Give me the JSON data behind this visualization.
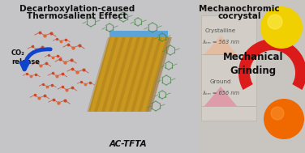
{
  "bg_color": "#c8c8cc",
  "title_left_1": "Decarboxylation-caused",
  "title_left_2": "Thermosalient Effect",
  "title_right_1": "Mechanochromic",
  "title_right_2": "cocrystal",
  "label_actfta": "AC-TFTA",
  "label_crystalline": "Crystalline",
  "lambda_crystalline": "λₑₘ = 563 nm",
  "label_ground": "Ground",
  "lambda_ground": "λₑₘ = 656 nm",
  "label_mechanical": "Mechanical\nGrinding",
  "label_co2": "CO₂\nrelease",
  "crystal_color_light": "#e8c840",
  "crystal_color_dark": "#a07818",
  "crystal_edge_color": "#4a9edd",
  "sphere_yellow_color": "#f0d000",
  "sphere_orange_color": "#f06800",
  "red_crescent_color": "#dd1111",
  "triangle_top_color": "#e8b898",
  "triangle_bot_color": "#dda0a8",
  "text_color_dark": "#111111",
  "text_color_mid": "#444444",
  "panel_bg": "#d8d4cc",
  "right_panel_bg": "#ccc8c4"
}
